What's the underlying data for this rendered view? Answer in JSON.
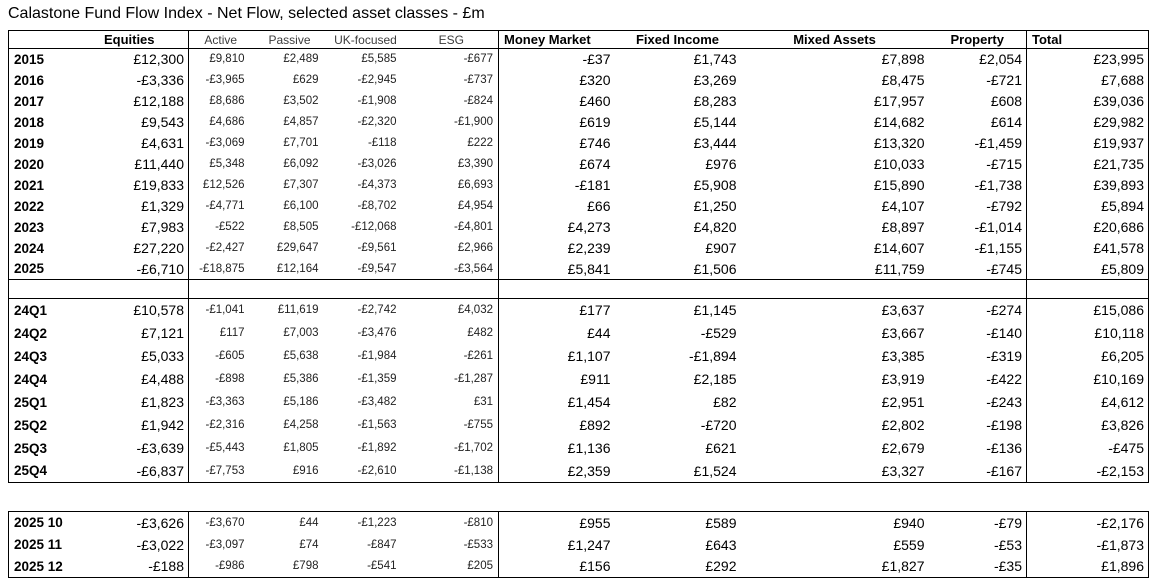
{
  "title": "Calastone Fund Flow Index - Net Flow, selected asset classes - £m",
  "table": {
    "columns": [
      {
        "key": "label",
        "header": ""
      },
      {
        "key": "equities",
        "header": "Equities"
      },
      {
        "key": "active",
        "header": "Active"
      },
      {
        "key": "passive",
        "header": "Passive"
      },
      {
        "key": "uk_focused",
        "header": "UK-focused"
      },
      {
        "key": "esg",
        "header": "ESG"
      },
      {
        "key": "money_market",
        "header": "Money Market"
      },
      {
        "key": "fixed_income",
        "header": "Fixed Income"
      },
      {
        "key": "mixed_assets",
        "header": "Mixed Assets"
      },
      {
        "key": "property",
        "header": "Property"
      },
      {
        "key": "total",
        "header": "Total"
      }
    ],
    "sections": [
      {
        "id": "annual",
        "table": "t1",
        "spacer_after": true,
        "rows": [
          {
            "label": "2015",
            "values": [
              "£12,300",
              "£9,810",
              "£2,489",
              "£5,585",
              "-£677",
              "-£37",
              "£1,743",
              "£7,898",
              "£2,054",
              "£23,995"
            ]
          },
          {
            "label": "2016",
            "values": [
              "-£3,336",
              "-£3,965",
              "£629",
              "-£2,945",
              "-£737",
              "£320",
              "£3,269",
              "£8,475",
              "-£721",
              "£7,688"
            ]
          },
          {
            "label": "2017",
            "values": [
              "£12,188",
              "£8,686",
              "£3,502",
              "-£1,908",
              "-£824",
              "£460",
              "£8,283",
              "£17,957",
              "£608",
              "£39,036"
            ]
          },
          {
            "label": "2018",
            "values": [
              "£9,543",
              "£4,686",
              "£4,857",
              "-£2,320",
              "-£1,900",
              "£619",
              "£5,144",
              "£14,682",
              "£614",
              "£29,982"
            ]
          },
          {
            "label": "2019",
            "values": [
              "£4,631",
              "-£3,069",
              "£7,701",
              "-£118",
              "£222",
              "£746",
              "£3,444",
              "£13,320",
              "-£1,459",
              "£19,937"
            ]
          },
          {
            "label": "2020",
            "values": [
              "£11,440",
              "£5,348",
              "£6,092",
              "-£3,026",
              "£3,390",
              "£674",
              "£976",
              "£10,033",
              "-£715",
              "£21,735"
            ]
          },
          {
            "label": "2021",
            "values": [
              "£19,833",
              "£12,526",
              "£7,307",
              "-£4,373",
              "£6,693",
              "-£181",
              "£5,908",
              "£15,890",
              "-£1,738",
              "£39,893"
            ]
          },
          {
            "label": "2022",
            "values": [
              "£1,329",
              "-£4,771",
              "£6,100",
              "-£8,702",
              "£4,954",
              "£66",
              "£1,250",
              "£4,107",
              "-£792",
              "£5,894"
            ]
          },
          {
            "label": "2023",
            "values": [
              "£7,983",
              "-£522",
              "£8,505",
              "-£12,068",
              "-£4,801",
              "£4,273",
              "£4,820",
              "£8,897",
              "-£1,014",
              "£20,686"
            ]
          },
          {
            "label": "2024",
            "values": [
              "£27,220",
              "-£2,427",
              "£29,647",
              "-£9,561",
              "£2,966",
              "£2,239",
              "£907",
              "£14,607",
              "-£1,155",
              "£41,578"
            ]
          },
          {
            "label": "2025",
            "values": [
              "-£6,710",
              "-£18,875",
              "£12,164",
              "-£9,547",
              "-£3,564",
              "£5,841",
              "£1,506",
              "£11,759",
              "-£745",
              "£5,809"
            ]
          }
        ]
      },
      {
        "id": "quarterly",
        "table": "t1",
        "rows": [
          {
            "label": "24Q1",
            "values": [
              "£10,578",
              "-£1,041",
              "£11,619",
              "-£2,742",
              "£4,032",
              "£177",
              "£1,145",
              "£3,637",
              "-£274",
              "£15,086"
            ]
          },
          {
            "label": "24Q2",
            "values": [
              "£7,121",
              "£117",
              "£7,003",
              "-£3,476",
              "£482",
              "£44",
              "-£529",
              "£3,667",
              "-£140",
              "£10,118"
            ]
          },
          {
            "label": "24Q3",
            "values": [
              "£5,033",
              "-£605",
              "£5,638",
              "-£1,984",
              "-£261",
              "£1,107",
              "-£1,894",
              "£3,385",
              "-£319",
              "£6,205"
            ]
          },
          {
            "label": "24Q4",
            "values": [
              "£4,488",
              "-£898",
              "£5,386",
              "-£1,359",
              "-£1,287",
              "£911",
              "£2,185",
              "£3,919",
              "-£422",
              "£10,169"
            ]
          },
          {
            "label": "25Q1",
            "values": [
              "£1,823",
              "-£3,363",
              "£5,186",
              "-£3,482",
              "£31",
              "£1,454",
              "£82",
              "£2,951",
              "-£243",
              "£4,612"
            ]
          },
          {
            "label": "25Q2",
            "values": [
              "£1,942",
              "-£2,316",
              "£4,258",
              "-£1,563",
              "-£755",
              "£892",
              "-£720",
              "£2,802",
              "-£198",
              "£3,826"
            ]
          },
          {
            "label": "25Q3",
            "values": [
              "-£3,639",
              "-£5,443",
              "£1,805",
              "-£1,892",
              "-£1,702",
              "£1,136",
              "£621",
              "£2,679",
              "-£136",
              "-£475"
            ]
          },
          {
            "label": "25Q4",
            "values": [
              "-£6,837",
              "-£7,753",
              "£916",
              "-£2,610",
              "-£1,138",
              "£2,359",
              "£1,524",
              "£3,327",
              "-£167",
              "-£2,153"
            ]
          }
        ]
      },
      {
        "id": "monthly",
        "table": "t2",
        "rows": [
          {
            "label": "2025 10",
            "values": [
              "-£3,626",
              "-£3,670",
              "£44",
              "-£1,223",
              "-£810",
              "£955",
              "£589",
              "£940",
              "-£79",
              "-£2,176"
            ]
          },
          {
            "label": "2025 11",
            "values": [
              "-£3,022",
              "-£3,097",
              "£74",
              "-£847",
              "-£533",
              "£1,247",
              "£643",
              "£559",
              "-£53",
              "-£1,873"
            ]
          },
          {
            "label": "2025 12",
            "values": [
              "-£188",
              "-£986",
              "£798",
              "-£541",
              "£205",
              "£156",
              "£292",
              "£1,827",
              "-£35",
              "£1,896"
            ]
          }
        ]
      }
    ]
  }
}
